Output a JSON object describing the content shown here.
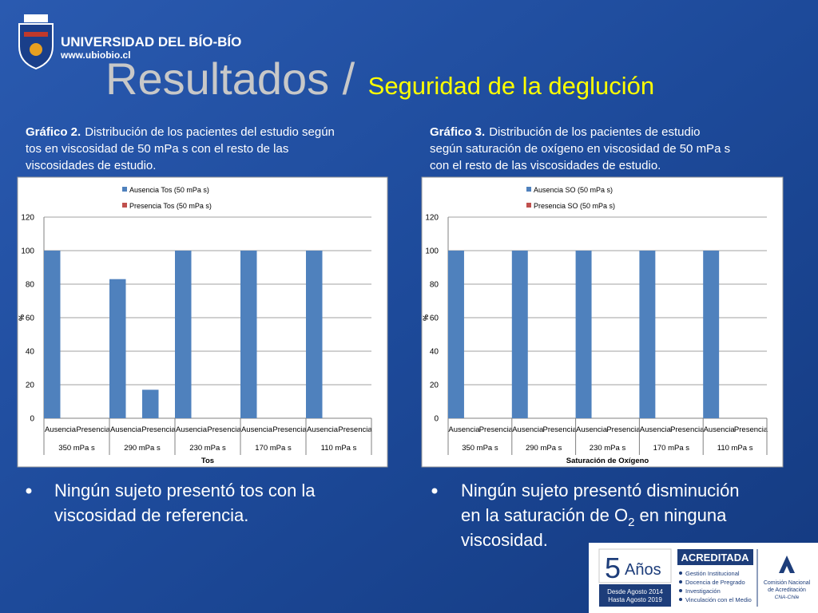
{
  "header": {
    "university": "UNIVERSIDAD DEL BÍO-BÍO",
    "website": "www.ubiobio.cl",
    "title": "Resultados",
    "separator": "/",
    "subtitle": "Seguridad de la deglución"
  },
  "chart_data": [
    {
      "type": "bar",
      "caption_label": "Gráfico 2.",
      "caption_lines": [
        "Distribución de los pacientes del estudio según",
        "tos en viscosidad de 50 mPa s con el resto de las",
        "viscosidades de estudio."
      ],
      "categories": [
        "Ausencia",
        "Presencia",
        "Ausencia",
        "Presencia",
        "Ausencia",
        "Presencia",
        "Ausencia",
        "Presencia",
        "Ausencia",
        "Presencia"
      ],
      "groups": [
        "350 mPa s",
        "290 mPa s",
        "230 mPa s",
        "170 mPa s",
        "110 mPa s"
      ],
      "series": [
        {
          "name": "Ausencia Tos (50 mPa s)",
          "color": "#4f81bd",
          "values": [
            100,
            0,
            83,
            17,
            100,
            0,
            100,
            0,
            100,
            0
          ]
        },
        {
          "name": "Presencia Tos (50 mPa s)",
          "color": "#c0504d",
          "values": [
            0,
            0,
            0,
            0,
            0,
            0,
            0,
            0,
            0,
            0
          ]
        }
      ],
      "x_label": "Tos",
      "y_label": "%",
      "ylim": [
        0,
        120
      ],
      "yticks": [
        0,
        20,
        40,
        60,
        80,
        100,
        120
      ],
      "grid": true
    },
    {
      "type": "bar",
      "caption_label": "Gráfico 3.",
      "caption_lines": [
        "Distribución de los pacientes de estudio",
        "según saturación de oxígeno en viscosidad de 50 mPa s",
        "con el resto de las viscosidades de estudio."
      ],
      "categories": [
        "Ausencia",
        "Presencia",
        "Ausencia",
        "Presencia",
        "Ausencia",
        "Presencia",
        "Ausencia",
        "Presencia",
        "Ausencia",
        "Presencia"
      ],
      "groups": [
        "350 mPa s",
        "290 mPa s",
        "230 mPa s",
        "170 mPa s",
        "110 mPa s"
      ],
      "series": [
        {
          "name": "Ausencia SO (50 mPa s)",
          "color": "#4f81bd",
          "values": [
            100,
            0,
            100,
            0,
            100,
            0,
            100,
            0,
            100,
            0
          ]
        },
        {
          "name": "Presencia SO (50 mPa s)",
          "color": "#c0504d",
          "values": [
            0,
            0,
            0,
            0,
            0,
            0,
            0,
            0,
            0,
            0
          ]
        }
      ],
      "x_label": "Saturación de Oxígeno",
      "y_label": "%",
      "ylim": [
        0,
        120
      ],
      "yticks": [
        0,
        20,
        40,
        60,
        80,
        100,
        120
      ],
      "grid": true
    }
  ],
  "bullets": [
    {
      "lines": [
        "Ningún sujeto presentó tos con la",
        "viscosidad de referencia."
      ]
    },
    {
      "lines": [
        "Ningún sujeto presentó disminución",
        "en la saturación de O",
        "viscosidad."
      ],
      "subscript": "2",
      "after_subscript": "en ninguna"
    }
  ],
  "badge": {
    "number": "5",
    "years": "Años",
    "from": "Desde Agosto 2014",
    "to": "Hasta Agosto 2019",
    "status": "ACREDITADA",
    "areas": [
      "Gestión Institucional",
      "Docencia de Pregrado",
      "Investigación",
      "Vinculación con el Medio"
    ],
    "agency_lines": [
      "Comisión Nacional",
      "de Acreditación"
    ],
    "agency_short": "CNA-Chile"
  }
}
